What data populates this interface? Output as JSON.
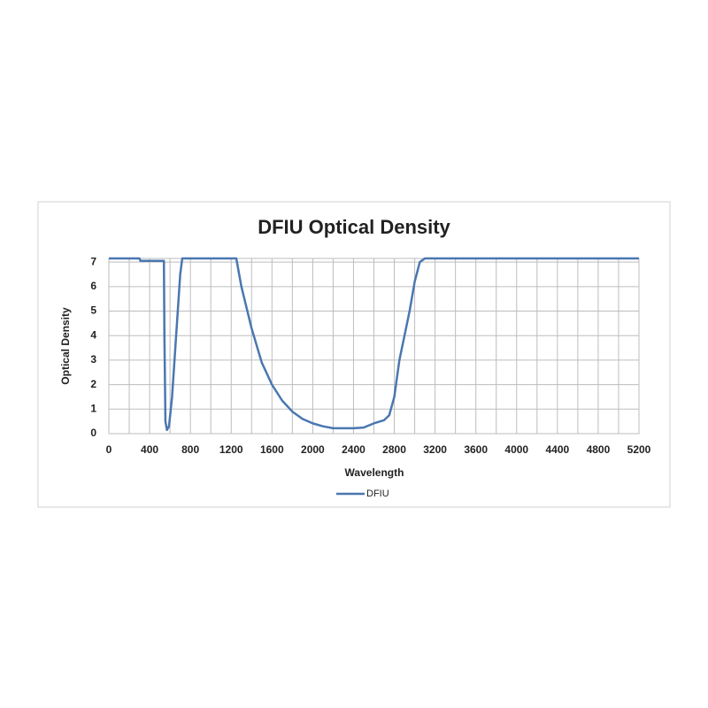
{
  "chart_data": {
    "type": "line",
    "title": "DFIU Optical Density",
    "x_label": "Wavelength",
    "y_label": "Optical Density",
    "x": [
      0,
      300,
      310,
      540,
      545,
      555,
      570,
      590,
      620,
      660,
      700,
      720,
      1250,
      1300,
      1400,
      1500,
      1600,
      1700,
      1800,
      1900,
      2000,
      2100,
      2200,
      2400,
      2500,
      2600,
      2700,
      2750,
      2800,
      2850,
      2900,
      2950,
      3000,
      3050,
      3100,
      5200
    ],
    "series": [
      {
        "name": "DFIU",
        "color": "#4a77b0",
        "values": [
          7.15,
          7.15,
          7.05,
          7.05,
          4,
          0.5,
          0.15,
          0.3,
          1.5,
          4,
          6.5,
          7.15,
          7.15,
          6,
          4.3,
          2.9,
          2.0,
          1.35,
          0.9,
          0.6,
          0.42,
          0.3,
          0.22,
          0.22,
          0.25,
          0.42,
          0.55,
          0.75,
          1.5,
          3.0,
          4.0,
          5.0,
          6.2,
          7.0,
          7.15,
          7.15
        ]
      }
    ],
    "xlim": [
      0,
      5200
    ],
    "xticks": [
      0,
      400,
      800,
      1200,
      1600,
      2000,
      2400,
      2800,
      3200,
      3600,
      4000,
      4400,
      4800,
      5200
    ],
    "x_minor_gridlines": [
      200,
      600,
      1000,
      1400,
      1800,
      2200,
      2600,
      3000,
      3400,
      3800,
      4200,
      4600,
      5000
    ],
    "ylim": [
      0,
      7.15
    ],
    "yticks": [
      0,
      1,
      2,
      3,
      4,
      5,
      6,
      7
    ],
    "grid": true,
    "legend": "bottom"
  }
}
